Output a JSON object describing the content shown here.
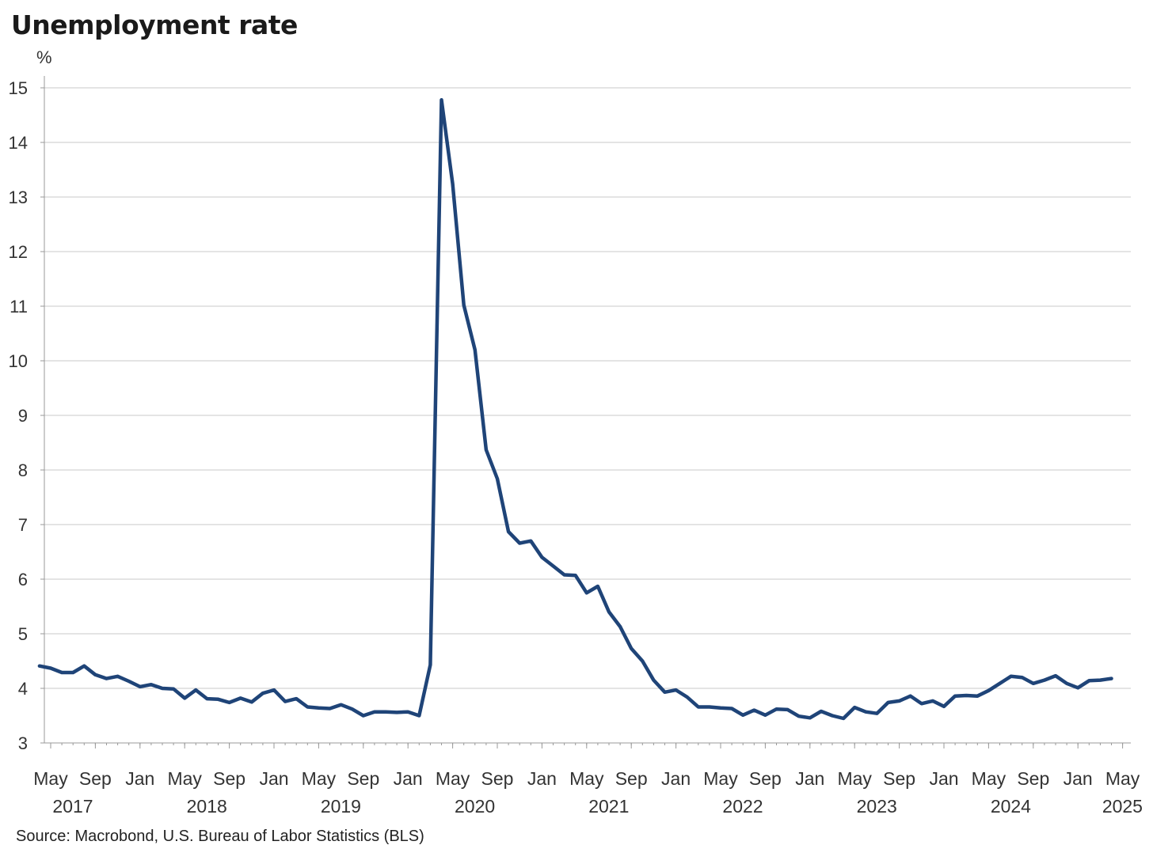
{
  "title": "Unemployment rate",
  "unit": "%",
  "source": "Source: Macrobond, U.S. Bureau of Labor Statistics (BLS)",
  "colors": {
    "line": "#1f4478",
    "grid": "#c8c8c8",
    "axis": "#999999"
  },
  "chart_data": {
    "type": "line",
    "title": "Unemployment rate",
    "ylabel": "%",
    "ylim": [
      3,
      15
    ],
    "yticks": [
      3,
      4,
      5,
      6,
      7,
      8,
      9,
      10,
      11,
      12,
      13,
      14,
      15
    ],
    "grid": true,
    "month_ticks": [
      {
        "x": "2017-05",
        "label": "May"
      },
      {
        "x": "2017-09",
        "label": "Sep"
      },
      {
        "x": "2018-01",
        "label": "Jan"
      },
      {
        "x": "2018-05",
        "label": "May"
      },
      {
        "x": "2018-09",
        "label": "Sep"
      },
      {
        "x": "2019-01",
        "label": "Jan"
      },
      {
        "x": "2019-05",
        "label": "May"
      },
      {
        "x": "2019-09",
        "label": "Sep"
      },
      {
        "x": "2020-01",
        "label": "Jan"
      },
      {
        "x": "2020-05",
        "label": "May"
      },
      {
        "x": "2020-09",
        "label": "Sep"
      },
      {
        "x": "2021-01",
        "label": "Jan"
      },
      {
        "x": "2021-05",
        "label": "May"
      },
      {
        "x": "2021-09",
        "label": "Sep"
      },
      {
        "x": "2022-01",
        "label": "Jan"
      },
      {
        "x": "2022-05",
        "label": "May"
      },
      {
        "x": "2022-09",
        "label": "Sep"
      },
      {
        "x": "2023-01",
        "label": "Jan"
      },
      {
        "x": "2023-05",
        "label": "May"
      },
      {
        "x": "2023-09",
        "label": "Sep"
      },
      {
        "x": "2024-01",
        "label": "Jan"
      },
      {
        "x": "2024-05",
        "label": "May"
      },
      {
        "x": "2024-09",
        "label": "Sep"
      },
      {
        "x": "2025-01",
        "label": "Jan"
      },
      {
        "x": "2025-05",
        "label": "May"
      }
    ],
    "year_labels": [
      {
        "x": "2017-05",
        "label": "2017"
      },
      {
        "x": "2018-05",
        "label": "2018"
      },
      {
        "x": "2019-05",
        "label": "2019"
      },
      {
        "x": "2020-05",
        "label": "2020"
      },
      {
        "x": "2021-05",
        "label": "2021"
      },
      {
        "x": "2022-05",
        "label": "2022"
      },
      {
        "x": "2023-05",
        "label": "2023"
      },
      {
        "x": "2024-05",
        "label": "2024"
      },
      {
        "x": "2025-03",
        "label": "2025"
      }
    ],
    "series": [
      {
        "start": "2017-04",
        "values": [
          4.41,
          4.37,
          4.29,
          4.29,
          4.41,
          4.25,
          4.18,
          4.22,
          4.13,
          4.03,
          4.07,
          4.0,
          3.99,
          3.82,
          3.97,
          3.81,
          3.8,
          3.74,
          3.82,
          3.75,
          3.91,
          3.97,
          3.76,
          3.81,
          3.66,
          3.64,
          3.63,
          3.7,
          3.62,
          3.5,
          3.57,
          3.57,
          3.56,
          3.57,
          3.5,
          4.43,
          14.78,
          13.24,
          11.02,
          10.2,
          8.37,
          7.84,
          6.87,
          6.66,
          6.7,
          6.4,
          6.24,
          6.08,
          6.07,
          5.75,
          5.87,
          5.4,
          5.13,
          4.73,
          4.5,
          4.15,
          3.93,
          3.97,
          3.84,
          3.66,
          3.66,
          3.64,
          3.63,
          3.51,
          3.6,
          3.51,
          3.62,
          3.61,
          3.49,
          3.46,
          3.58,
          3.5,
          3.45,
          3.65,
          3.57,
          3.54,
          3.74,
          3.77,
          3.86,
          3.72,
          3.77,
          3.67,
          3.86,
          3.87,
          3.86,
          3.96,
          4.09,
          4.22,
          4.2,
          4.09,
          4.15,
          4.23,
          4.09,
          4.01,
          4.14,
          4.15,
          4.18
        ]
      }
    ]
  }
}
